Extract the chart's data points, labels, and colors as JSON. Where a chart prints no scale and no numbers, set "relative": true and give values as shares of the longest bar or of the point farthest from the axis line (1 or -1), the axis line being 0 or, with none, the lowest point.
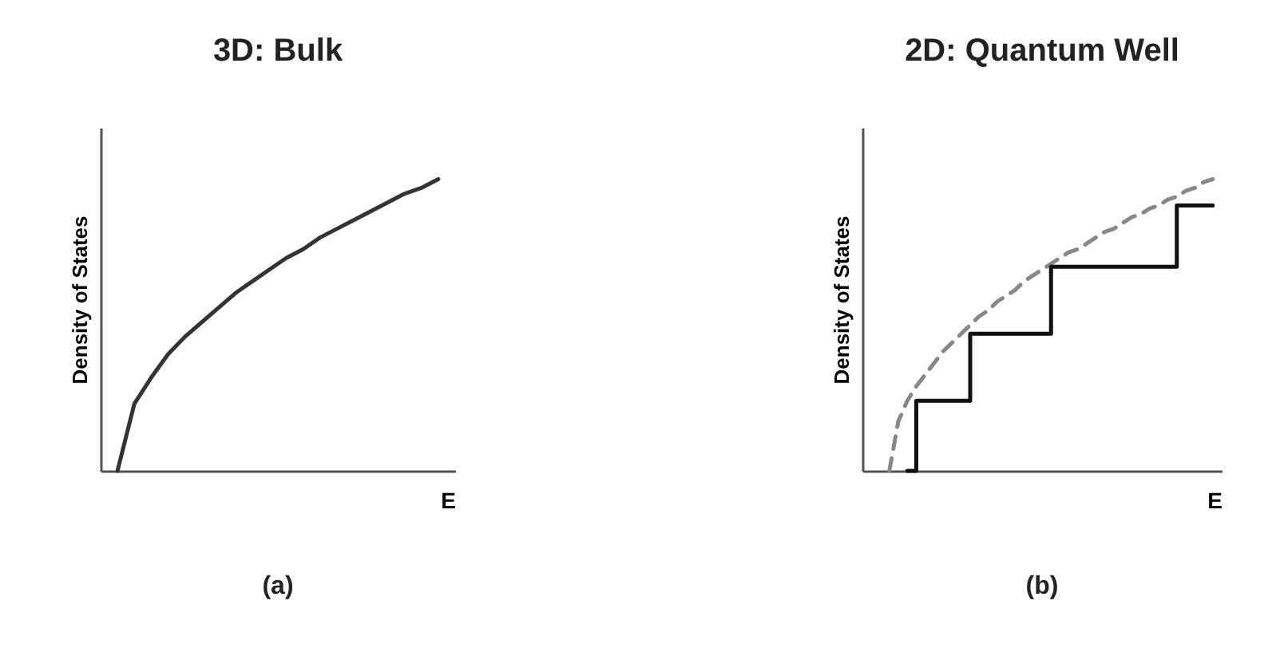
{
  "chart_data": [
    {
      "type": "line",
      "title": "3D: Bulk",
      "xlabel": "E",
      "ylabel": "Density of States",
      "relative": true,
      "tick_labels": false,
      "annotations": [
        "(a)"
      ],
      "categories": [
        null,
        null,
        null,
        null,
        null,
        null,
        null,
        null,
        null,
        null,
        null,
        null,
        null,
        null,
        null,
        null,
        null,
        null,
        null,
        null,
        null,
        null
      ],
      "series": [
        {
          "color": "#333333",
          "line_style": "solid",
          "values": [
            null,
            0,
            0.23,
            0.32,
            0.4,
            0.46,
            0.51,
            0.56,
            0.61,
            0.65,
            0.69,
            0.73,
            0.76,
            0.8,
            0.83,
            0.86,
            0.89,
            0.92,
            0.95,
            0.97,
            1,
            null
          ]
        }
      ]
    },
    {
      "type": "line",
      "title": "2D: Quantum Well",
      "xlabel": "E",
      "ylabel": "Density of States",
      "relative": true,
      "tick_labels": false,
      "annotations": [
        "(b)"
      ],
      "categories": [
        null,
        null,
        null,
        null,
        null,
        null,
        null,
        null,
        null,
        null,
        null,
        null,
        null,
        null,
        null,
        null,
        null,
        null,
        null,
        null,
        null,
        null,
        null,
        null,
        null,
        null,
        null,
        null,
        null,
        null,
        null,
        null,
        null,
        null,
        null,
        null,
        null,
        null,
        null,
        null,
        null
      ],
      "series": [
        {
          "color": "#888888",
          "line_style": "dashed",
          "values": [
            null,
            null,
            null,
            0,
            0.17,
            0.24,
            0.29,
            0.33,
            0.37,
            0.41,
            0.44,
            0.47,
            0.5,
            0.53,
            0.55,
            0.58,
            0.6,
            0.62,
            0.65,
            0.67,
            0.69,
            0.71,
            0.73,
            0.75,
            0.76,
            0.78,
            0.8,
            0.82,
            0.83,
            0.85,
            0.87,
            0.88,
            0.9,
            0.91,
            0.93,
            0.94,
            0.96,
            0.97,
            0.99,
            1,
            null
          ]
        },
        {
          "type": "step",
          "color": "#111111",
          "line_style": "solid",
          "values": [
            null,
            null,
            null,
            null,
            null,
            0,
            0.24,
            0.24,
            0.24,
            0.24,
            0.24,
            0.24,
            0.47,
            0.47,
            0.47,
            0.47,
            0.47,
            0.47,
            0.47,
            0.47,
            0.47,
            0.7,
            0.7,
            0.7,
            0.7,
            0.7,
            0.7,
            0.7,
            0.7,
            0.7,
            0.7,
            0.7,
            0.7,
            0.7,
            0.7,
            0.91,
            0.91,
            0.91,
            0.91,
            0.91,
            null
          ]
        }
      ]
    }
  ]
}
